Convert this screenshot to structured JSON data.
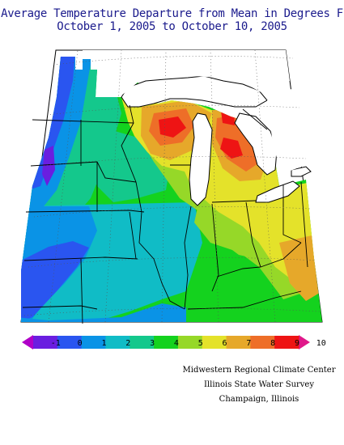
{
  "title": {
    "line1": "Average Temperature Departure from Mean in Degrees F",
    "line2": "October 1, 2005 to October 10, 2005"
  },
  "legend": {
    "ticks": [
      "-1",
      "0",
      "1",
      "2",
      "3",
      "4",
      "5",
      "6",
      "7",
      "8",
      "9",
      "10"
    ],
    "colors": [
      "#b000c8",
      "#6a1ee0",
      "#2a55f0",
      "#0a93e6",
      "#10bcc6",
      "#14c88c",
      "#14d21e",
      "#96d828",
      "#e4e22a",
      "#e6a82a",
      "#ee6e28",
      "#ee1414",
      "#e0188a"
    ]
  },
  "credits": {
    "line1": "Midwestern Regional Climate Center",
    "line2": "Illinois State Water Survey",
    "line3": "Champaign, Illinois"
  }
}
